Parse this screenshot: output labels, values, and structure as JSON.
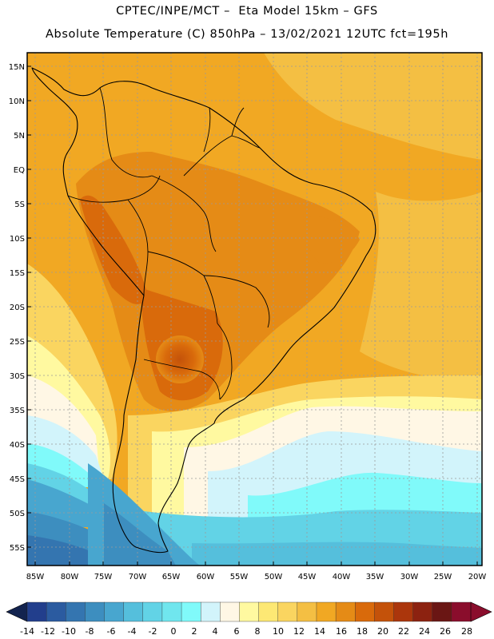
{
  "header": {
    "line1": "CPTEC/INPE/MCT –  Eta Model 15km – GFS",
    "line2": "Absolute Temperature (C) 850hPa – 13/02/2021 12UTC fct=195h"
  },
  "map": {
    "lat_labels": [
      "15N",
      "10N",
      "5N",
      "EQ",
      "5S",
      "10S",
      "15S",
      "20S",
      "25S",
      "30S",
      "35S",
      "40S",
      "45S",
      "50S",
      "55S"
    ],
    "lon_labels": [
      "85W",
      "80W",
      "75W",
      "70W",
      "65W",
      "60W",
      "55W",
      "50W",
      "45W",
      "40W",
      "35W",
      "30W",
      "25W",
      "20W"
    ],
    "grid": true,
    "region": "South America"
  },
  "colorbar": {
    "levels": [
      "-14",
      "-12",
      "-10",
      "-8",
      "-6",
      "-4",
      "-2",
      "0",
      "2",
      "4",
      "6",
      "8",
      "10",
      "12",
      "14",
      "16",
      "18",
      "20",
      "22",
      "24",
      "26",
      "28"
    ],
    "colors": [
      "#223e8c",
      "#2b5ba0",
      "#3475b0",
      "#3d8ebf",
      "#48a6cf",
      "#55bfdc",
      "#62d3e6",
      "#70e6ee",
      "#80fafa",
      "#d2f4fb",
      "#fff7e5",
      "#fff9a0",
      "#fde874",
      "#fad560",
      "#f4bf43",
      "#f1a823",
      "#e58b16",
      "#d96a0b",
      "#c4520a",
      "#ab360c",
      "#8c2210",
      "#6a1614",
      "#8a0d2c"
    ],
    "under_color": "#13234f",
    "over_color": "#8a0d2c"
  }
}
